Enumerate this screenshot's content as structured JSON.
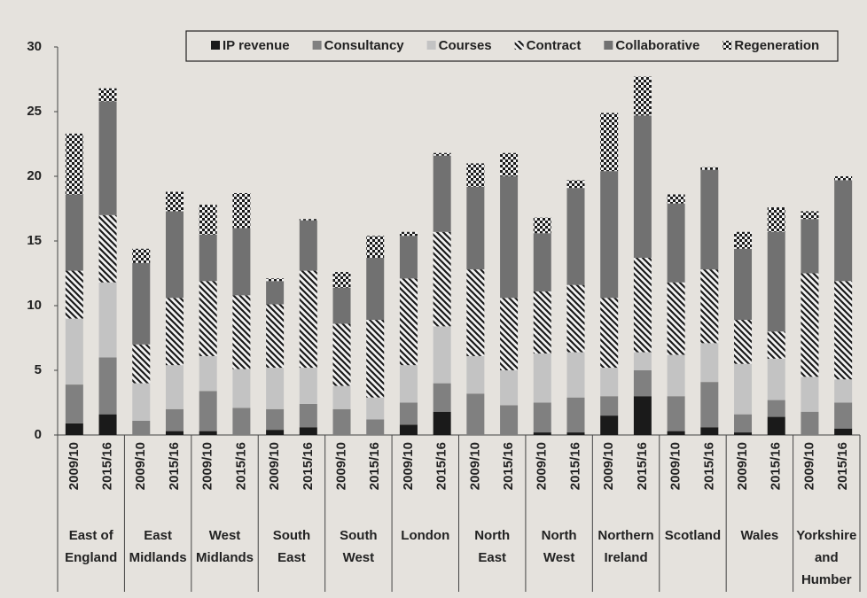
{
  "chart_data": {
    "type": "stacked-bar",
    "groups": [
      "East of England",
      "East Midlands",
      "West Midlands",
      "South East",
      "South West",
      "London",
      "North East",
      "North West",
      "Northern Ireland",
      "Scotland",
      "Wales",
      "Yorkshire and Humber"
    ],
    "categories": [
      "2009/10",
      "2015/16",
      "2009/10",
      "2015/16",
      "2009/10",
      "2015/16",
      "2009/10",
      "2015/16",
      "2009/10",
      "2015/16",
      "2009/10",
      "2015/16",
      "2009/10",
      "2015/16",
      "2009/10",
      "2015/16",
      "2009/10",
      "2015/16",
      "2009/10",
      "2015/16",
      "2009/10",
      "2015/16",
      "2009/10",
      "2015/16"
    ],
    "series": [
      {
        "name": "IP revenue",
        "color": "#1a1a1a",
        "values": [
          0.9,
          1.6,
          0,
          0.3,
          0.3,
          0,
          0.4,
          0.6,
          0,
          0,
          0.8,
          1.8,
          0,
          0,
          0.2,
          0.2,
          1.5,
          3.0,
          0.3,
          0.6,
          0.2,
          1.4,
          0,
          0.5
        ]
      },
      {
        "name": "Consultancy",
        "color": "#808080",
        "values": [
          3.0,
          4.4,
          1.1,
          1.7,
          3.1,
          2.1,
          1.6,
          1.8,
          2.0,
          1.2,
          1.7,
          2.2,
          3.2,
          2.3,
          2.3,
          2.7,
          1.5,
          2.0,
          2.7,
          3.5,
          1.4,
          1.3,
          1.8,
          2.0
        ]
      },
      {
        "name": "Courses",
        "color": "#c3c3c3",
        "values": [
          5.1,
          5.8,
          2.9,
          3.4,
          2.7,
          3.0,
          3.2,
          2.8,
          1.8,
          1.7,
          2.9,
          4.4,
          2.9,
          2.7,
          3.8,
          3.5,
          2.2,
          1.4,
          3.2,
          3.0,
          3.9,
          3.2,
          2.7,
          1.8
        ]
      },
      {
        "name": "Contract",
        "color": "#1a1a1a",
        "pattern": "diagonal",
        "values": [
          3.7,
          5.2,
          3.0,
          5.2,
          5.8,
          5.7,
          4.9,
          7.5,
          4.8,
          6.0,
          6.7,
          7.3,
          6.7,
          5.6,
          4.8,
          5.2,
          5.4,
          7.3,
          5.6,
          5.7,
          3.4,
          2.1,
          8.0,
          7.6
        ]
      },
      {
        "name": "Collaborative",
        "color": "#717171",
        "values": [
          5.9,
          8.8,
          6.3,
          6.7,
          3.6,
          5.2,
          1.8,
          3.9,
          2.8,
          4.8,
          3.3,
          5.9,
          6.4,
          9.4,
          4.5,
          7.5,
          9.8,
          11.0,
          6.1,
          7.7,
          5.5,
          7.7,
          4.2,
          7.8
        ]
      },
      {
        "name": "Regeneration",
        "color": "#1a1a1a",
        "pattern": "checker",
        "values": [
          4.7,
          1.0,
          1.1,
          1.5,
          2.3,
          2.7,
          0.2,
          0.1,
          1.2,
          1.7,
          0.3,
          0.2,
          1.8,
          1.8,
          1.2,
          0.6,
          4.5,
          3.0,
          0.7,
          0.2,
          1.3,
          1.9,
          0.6,
          0.3
        ]
      }
    ],
    "ylim": [
      0,
      30
    ],
    "yticks": [
      0,
      5,
      10,
      15,
      20,
      25,
      30
    ],
    "grid": false,
    "legend": "top"
  }
}
